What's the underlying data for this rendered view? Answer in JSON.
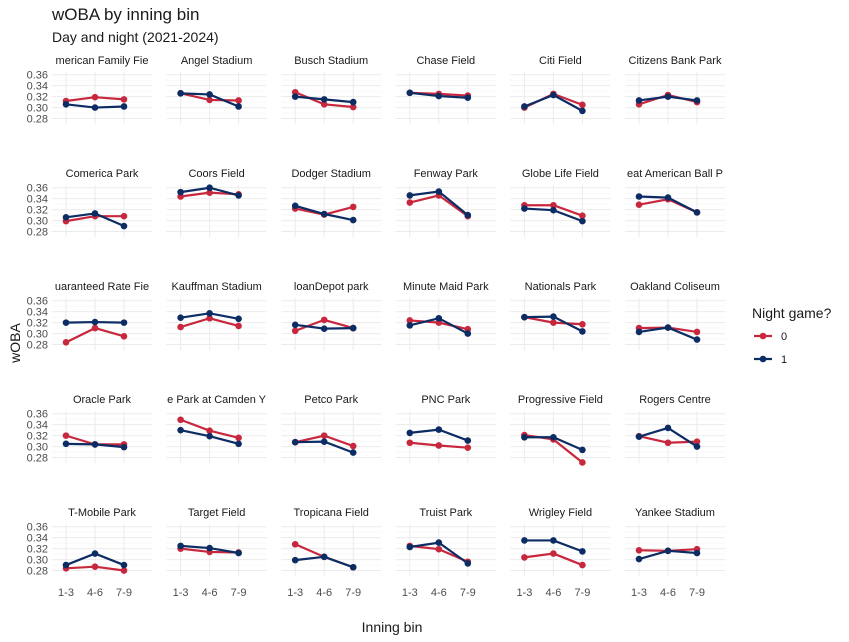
{
  "chart_data": {
    "type": "line",
    "title": "wOBA by inning bin",
    "subtitle": "Day and night (2021-2024)",
    "xlabel": "Inning bin",
    "ylabel": "wOBA",
    "categories": [
      "1-3",
      "4-6",
      "7-9"
    ],
    "yticks": [
      "0.28",
      "0.30",
      "0.32",
      "0.34",
      "0.36"
    ],
    "ylim": [
      0.27,
      0.365
    ],
    "legend": {
      "title": "Night game?",
      "entries": [
        {
          "label": "0",
          "color": "#C8283D"
        },
        {
          "label": "1",
          "color": "#0C2C64"
        }
      ]
    },
    "facets": [
      {
        "label": "American Family Field",
        "strip": "merican Family Fie",
        "series": [
          {
            "name": "0",
            "values": [
              0.312,
              0.319,
              0.315
            ]
          },
          {
            "name": "1",
            "values": [
              0.306,
              0.3,
              0.302
            ]
          }
        ]
      },
      {
        "label": "Angel Stadium",
        "strip": "Angel Stadium",
        "series": [
          {
            "name": "0",
            "values": [
              0.326,
              0.314,
              0.313
            ]
          },
          {
            "name": "1",
            "values": [
              0.326,
              0.324,
              0.302
            ]
          }
        ]
      },
      {
        "label": "Busch Stadium",
        "strip": "Busch Stadium",
        "series": [
          {
            "name": "0",
            "values": [
              0.328,
              0.306,
              0.301
            ]
          },
          {
            "name": "1",
            "values": [
              0.32,
              0.315,
              0.31
            ]
          }
        ]
      },
      {
        "label": "Chase Field",
        "strip": "Chase Field",
        "series": [
          {
            "name": "0",
            "values": [
              0.327,
              0.325,
              0.322
            ]
          },
          {
            "name": "1",
            "values": [
              0.327,
              0.321,
              0.318
            ]
          }
        ]
      },
      {
        "label": "Citi Field",
        "strip": "Citi Field",
        "series": [
          {
            "name": "0",
            "values": [
              0.3,
              0.325,
              0.305
            ]
          },
          {
            "name": "1",
            "values": [
              0.302,
              0.323,
              0.294
            ]
          }
        ]
      },
      {
        "label": "Citizens Bank Park",
        "strip": "Citizens Bank Park",
        "series": [
          {
            "name": "0",
            "values": [
              0.306,
              0.323,
              0.31
            ]
          },
          {
            "name": "1",
            "values": [
              0.313,
              0.32,
              0.313
            ]
          }
        ]
      },
      {
        "label": "Comerica Park",
        "strip": "Comerica Park",
        "series": [
          {
            "name": "0",
            "values": [
              0.299,
              0.308,
              0.308
            ]
          },
          {
            "name": "1",
            "values": [
              0.306,
              0.313,
              0.29
            ]
          }
        ]
      },
      {
        "label": "Coors Field",
        "strip": "Coors Field",
        "series": [
          {
            "name": "0",
            "values": [
              0.344,
              0.351,
              0.348
            ]
          },
          {
            "name": "1",
            "values": [
              0.352,
              0.36,
              0.346
            ]
          }
        ]
      },
      {
        "label": "Dodger Stadium",
        "strip": "Dodger Stadium",
        "series": [
          {
            "name": "0",
            "values": [
              0.322,
              0.311,
              0.325
            ]
          },
          {
            "name": "1",
            "values": [
              0.327,
              0.312,
              0.301
            ]
          }
        ]
      },
      {
        "label": "Fenway Park",
        "strip": "Fenway Park",
        "series": [
          {
            "name": "0",
            "values": [
              0.333,
              0.346,
              0.308
            ]
          },
          {
            "name": "1",
            "values": [
              0.346,
              0.353,
              0.31
            ]
          }
        ]
      },
      {
        "label": "Globe Life Field",
        "strip": "Globe Life Field",
        "series": [
          {
            "name": "0",
            "values": [
              0.328,
              0.328,
              0.309
            ]
          },
          {
            "name": "1",
            "values": [
              0.322,
              0.319,
              0.299
            ]
          }
        ]
      },
      {
        "label": "Great American Ball Park",
        "strip": "eat American Ball P",
        "series": [
          {
            "name": "0",
            "values": [
              0.329,
              0.339,
              0.315
            ]
          },
          {
            "name": "1",
            "values": [
              0.344,
              0.342,
              0.315
            ]
          }
        ]
      },
      {
        "label": "Guaranteed Rate Field",
        "strip": "uaranteed Rate Fie",
        "series": [
          {
            "name": "0",
            "values": [
              0.284,
              0.31,
              0.295
            ]
          },
          {
            "name": "1",
            "values": [
              0.32,
              0.321,
              0.32
            ]
          }
        ]
      },
      {
        "label": "Kauffman Stadium",
        "strip": "Kauffman Stadium",
        "series": [
          {
            "name": "0",
            "values": [
              0.312,
              0.328,
              0.314
            ]
          },
          {
            "name": "1",
            "values": [
              0.329,
              0.337,
              0.327
            ]
          }
        ]
      },
      {
        "label": "loanDepot park",
        "strip": "loanDepot park",
        "series": [
          {
            "name": "0",
            "values": [
              0.305,
              0.325,
              0.31
            ]
          },
          {
            "name": "1",
            "values": [
              0.316,
              0.309,
              0.31
            ]
          }
        ]
      },
      {
        "label": "Minute Maid Park",
        "strip": "Minute Maid Park",
        "series": [
          {
            "name": "0",
            "values": [
              0.324,
              0.32,
              0.308
            ]
          },
          {
            "name": "1",
            "values": [
              0.315,
              0.328,
              0.3
            ]
          }
        ]
      },
      {
        "label": "Nationals Park",
        "strip": "Nationals Park",
        "series": [
          {
            "name": "0",
            "values": [
              0.33,
              0.32,
              0.317
            ]
          },
          {
            "name": "1",
            "values": [
              0.33,
              0.331,
              0.304
            ]
          }
        ]
      },
      {
        "label": "Oakland Coliseum",
        "strip": "Oakland Coliseum",
        "series": [
          {
            "name": "0",
            "values": [
              0.31,
              0.311,
              0.303
            ]
          },
          {
            "name": "1",
            "values": [
              0.303,
              0.311,
              0.289
            ]
          }
        ]
      },
      {
        "label": "Oracle Park",
        "strip": "Oracle Park",
        "series": [
          {
            "name": "0",
            "values": [
              0.32,
              0.304,
              0.304
            ]
          },
          {
            "name": "1",
            "values": [
              0.305,
              0.304,
              0.299
            ]
          }
        ]
      },
      {
        "label": "Oriole Park at Camden Yards",
        "strip": "e Park at Camden Y",
        "series": [
          {
            "name": "0",
            "values": [
              0.349,
              0.329,
              0.316
            ]
          },
          {
            "name": "1",
            "values": [
              0.33,
              0.319,
              0.305
            ]
          }
        ]
      },
      {
        "label": "Petco Park",
        "strip": "Petco Park",
        "series": [
          {
            "name": "0",
            "values": [
              0.308,
              0.32,
              0.301
            ]
          },
          {
            "name": "1",
            "values": [
              0.308,
              0.309,
              0.289
            ]
          }
        ]
      },
      {
        "label": "PNC Park",
        "strip": "PNC Park",
        "series": [
          {
            "name": "0",
            "values": [
              0.307,
              0.302,
              0.298
            ]
          },
          {
            "name": "1",
            "values": [
              0.325,
              0.331,
              0.311
            ]
          }
        ]
      },
      {
        "label": "Progressive Field",
        "strip": "Progressive Field",
        "series": [
          {
            "name": "0",
            "values": [
              0.321,
              0.313,
              0.271
            ]
          },
          {
            "name": "1",
            "values": [
              0.317,
              0.317,
              0.294
            ]
          }
        ]
      },
      {
        "label": "Rogers Centre",
        "strip": "Rogers Centre",
        "series": [
          {
            "name": "0",
            "values": [
              0.319,
              0.307,
              0.309
            ]
          },
          {
            "name": "1",
            "values": [
              0.318,
              0.334,
              0.3
            ]
          }
        ]
      },
      {
        "label": "T-Mobile Park",
        "strip": "T-Mobile Park",
        "series": [
          {
            "name": "0",
            "values": [
              0.284,
              0.287,
              0.28
            ]
          },
          {
            "name": "1",
            "values": [
              0.29,
              0.311,
              0.29
            ]
          }
        ]
      },
      {
        "label": "Target Field",
        "strip": "Target Field",
        "series": [
          {
            "name": "0",
            "values": [
              0.32,
              0.314,
              0.313
            ]
          },
          {
            "name": "1",
            "values": [
              0.325,
              0.321,
              0.312
            ]
          }
        ]
      },
      {
        "label": "Tropicana Field",
        "strip": "Tropicana Field",
        "series": [
          {
            "name": "0",
            "values": [
              0.328,
              0.305,
              0.286
            ]
          },
          {
            "name": "1",
            "values": [
              0.299,
              0.305,
              0.286
            ]
          }
        ]
      },
      {
        "label": "Truist Park",
        "strip": "Truist Park",
        "series": [
          {
            "name": "0",
            "values": [
              0.325,
              0.319,
              0.296
            ]
          },
          {
            "name": "1",
            "values": [
              0.323,
              0.331,
              0.293
            ]
          }
        ]
      },
      {
        "label": "Wrigley Field",
        "strip": "Wrigley Field",
        "series": [
          {
            "name": "0",
            "values": [
              0.304,
              0.311,
              0.29
            ]
          },
          {
            "name": "1",
            "values": [
              0.335,
              0.335,
              0.315
            ]
          }
        ]
      },
      {
        "label": "Yankee Stadium",
        "strip": "Yankee Stadium",
        "series": [
          {
            "name": "0",
            "values": [
              0.317,
              0.316,
              0.319
            ]
          },
          {
            "name": "1",
            "values": [
              0.301,
              0.316,
              0.312
            ]
          }
        ]
      }
    ]
  }
}
